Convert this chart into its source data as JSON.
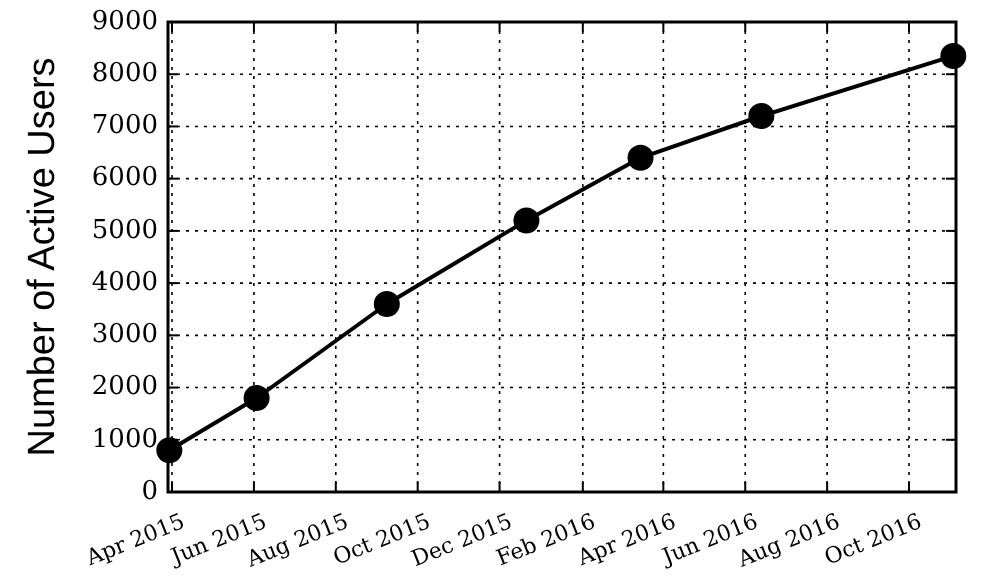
{
  "chart_data": {
    "type": "line",
    "ylabel": "Number of Active Users",
    "x": [
      "2015-03-30",
      "2015-06-03",
      "2015-09-08",
      "2015-12-21",
      "2016-03-15",
      "2016-06-13",
      "2016-11-03"
    ],
    "series": [
      {
        "color": "#000000",
        "values": [
          800,
          1800,
          3600,
          5200,
          6400,
          7200,
          8350
        ]
      }
    ],
    "xlim": [
      "2015-03-29",
      "2016-11-05"
    ],
    "xticks": [
      {
        "value": "2015-04-01",
        "label": "Apr 2015"
      },
      {
        "value": "2015-06-01",
        "label": "Jun 2015"
      },
      {
        "value": "2015-08-01",
        "label": "Aug 2015"
      },
      {
        "value": "2015-10-01",
        "label": "Oct 2015"
      },
      {
        "value": "2015-12-01",
        "label": "Dec 2015"
      },
      {
        "value": "2016-02-01",
        "label": "Feb 2016"
      },
      {
        "value": "2016-04-01",
        "label": "Apr 2016"
      },
      {
        "value": "2016-06-01",
        "label": "Jun 2016"
      },
      {
        "value": "2016-08-01",
        "label": "Aug 2016"
      },
      {
        "value": "2016-10-01",
        "label": "Oct 2016"
      }
    ],
    "ylim": [
      0,
      9000
    ],
    "yticks": [
      0,
      1000,
      2000,
      3000,
      4000,
      5000,
      6000,
      7000,
      8000,
      9000
    ],
    "grid": true,
    "marker": "circle",
    "line_style": "solid"
  }
}
